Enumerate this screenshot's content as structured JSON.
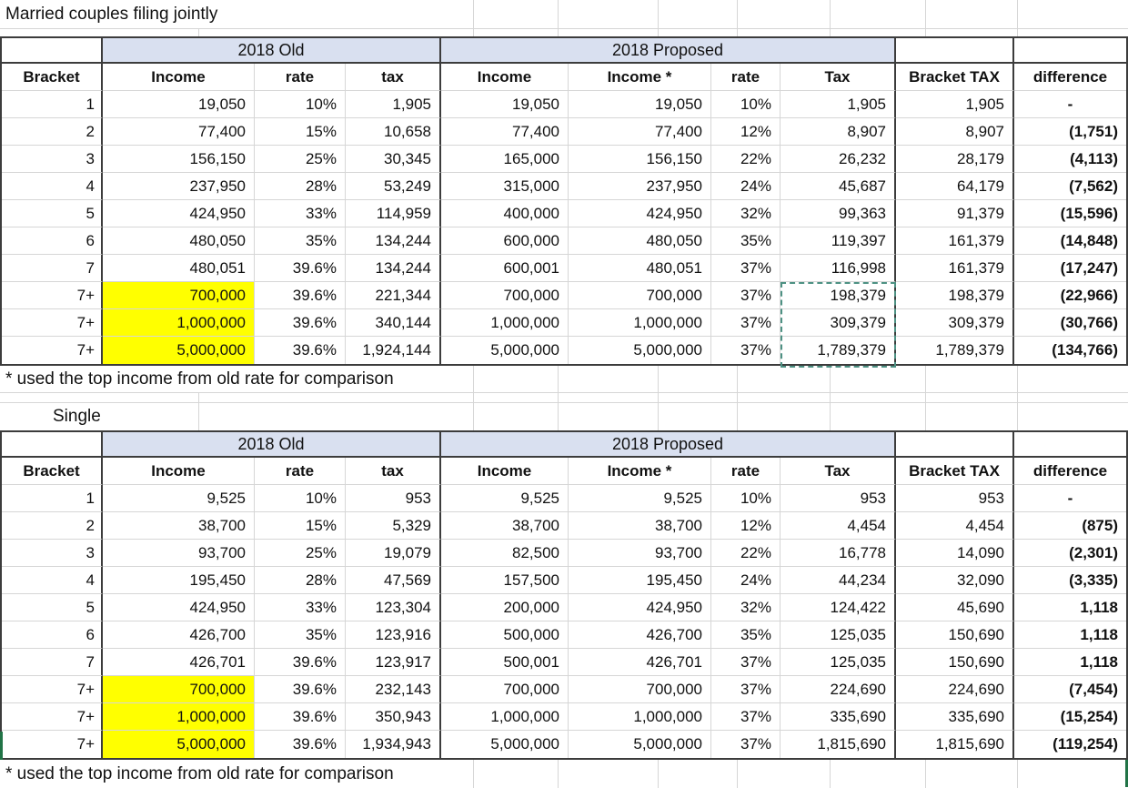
{
  "sheet": {
    "title_married": "Married couples filing jointly",
    "single_label": "Single",
    "footnote": "* used the top income from old rate for comparison"
  },
  "colors": {
    "band_fill": "#d9e0f0",
    "gridline": "#d6d6d6",
    "border_dark": "#3c3c3c",
    "highlight_yellow": "#ffff00",
    "marquee_teal": "#4d9183",
    "selection_green": "#217346",
    "text": "#111111"
  },
  "header": {
    "old": "2018 Old",
    "proposed": "2018 Proposed",
    "columns": [
      "Bracket",
      "Income",
      "rate",
      "tax",
      "Income",
      "Income *",
      "rate",
      "Tax",
      "Bracket TAX",
      "difference"
    ]
  },
  "married_table": {
    "rows": [
      {
        "cells": [
          "1",
          "19,050",
          "10%",
          "1,905",
          "19,050",
          "19,050",
          "10%",
          "1,905",
          "1,905",
          "-"
        ],
        "highlight": false
      },
      {
        "cells": [
          "2",
          "77,400",
          "15%",
          "10,658",
          "77,400",
          "77,400",
          "12%",
          "8,907",
          "8,907",
          "(1,751)"
        ],
        "highlight": false
      },
      {
        "cells": [
          "3",
          "156,150",
          "25%",
          "30,345",
          "165,000",
          "156,150",
          "22%",
          "26,232",
          "28,179",
          "(4,113)"
        ],
        "highlight": false
      },
      {
        "cells": [
          "4",
          "237,950",
          "28%",
          "53,249",
          "315,000",
          "237,950",
          "24%",
          "45,687",
          "64,179",
          "(7,562)"
        ],
        "highlight": false
      },
      {
        "cells": [
          "5",
          "424,950",
          "33%",
          "114,959",
          "400,000",
          "424,950",
          "32%",
          "99,363",
          "91,379",
          "(15,596)"
        ],
        "highlight": false
      },
      {
        "cells": [
          "6",
          "480,050",
          "35%",
          "134,244",
          "600,000",
          "480,050",
          "35%",
          "119,397",
          "161,379",
          "(14,848)"
        ],
        "highlight": false
      },
      {
        "cells": [
          "7",
          "480,051",
          "39.6%",
          "134,244",
          "600,001",
          "480,051",
          "37%",
          "116,998",
          "161,379",
          "(17,247)"
        ],
        "highlight": false
      },
      {
        "cells": [
          "7+",
          "700,000",
          "39.6%",
          "221,344",
          "700,000",
          "700,000",
          "37%",
          "198,379",
          "198,379",
          "(22,966)"
        ],
        "highlight": true
      },
      {
        "cells": [
          "7+",
          "1,000,000",
          "39.6%",
          "340,144",
          "1,000,000",
          "1,000,000",
          "37%",
          "309,379",
          "309,379",
          "(30,766)"
        ],
        "highlight": true
      },
      {
        "cells": [
          "7+",
          "5,000,000",
          "39.6%",
          "1,924,144",
          "5,000,000",
          "5,000,000",
          "37%",
          "1,789,379",
          "1,789,379",
          "(134,766)"
        ],
        "highlight": true
      }
    ],
    "copy_selection": {
      "column": "Tax",
      "row_indices": [
        7,
        8,
        9
      ]
    }
  },
  "single_table": {
    "rows": [
      {
        "cells": [
          "1",
          "9,525",
          "10%",
          "953",
          "9,525",
          "9,525",
          "10%",
          "953",
          "953",
          "-"
        ],
        "highlight": false
      },
      {
        "cells": [
          "2",
          "38,700",
          "15%",
          "5,329",
          "38,700",
          "38,700",
          "12%",
          "4,454",
          "4,454",
          "(875)"
        ],
        "highlight": false
      },
      {
        "cells": [
          "3",
          "93,700",
          "25%",
          "19,079",
          "82,500",
          "93,700",
          "22%",
          "16,778",
          "14,090",
          "(2,301)"
        ],
        "highlight": false
      },
      {
        "cells": [
          "4",
          "195,450",
          "28%",
          "47,569",
          "157,500",
          "195,450",
          "24%",
          "44,234",
          "32,090",
          "(3,335)"
        ],
        "highlight": false
      },
      {
        "cells": [
          "5",
          "424,950",
          "33%",
          "123,304",
          "200,000",
          "424,950",
          "32%",
          "124,422",
          "45,690",
          "1,118"
        ],
        "highlight": false
      },
      {
        "cells": [
          "6",
          "426,700",
          "35%",
          "123,916",
          "500,000",
          "426,700",
          "35%",
          "125,035",
          "150,690",
          "1,118"
        ],
        "highlight": false
      },
      {
        "cells": [
          "7",
          "426,701",
          "39.6%",
          "123,917",
          "500,001",
          "426,701",
          "37%",
          "125,035",
          "150,690",
          "1,118"
        ],
        "highlight": false
      },
      {
        "cells": [
          "7+",
          "700,000",
          "39.6%",
          "232,143",
          "700,000",
          "700,000",
          "37%",
          "224,690",
          "224,690",
          "(7,454)"
        ],
        "highlight": true
      },
      {
        "cells": [
          "7+",
          "1,000,000",
          "39.6%",
          "350,943",
          "1,000,000",
          "1,000,000",
          "37%",
          "335,690",
          "335,690",
          "(15,254)"
        ],
        "highlight": true
      },
      {
        "cells": [
          "7+",
          "5,000,000",
          "39.6%",
          "1,934,943",
          "5,000,000",
          "5,000,000",
          "37%",
          "1,815,690",
          "1,815,690",
          "(119,254)"
        ],
        "highlight": true
      }
    ]
  }
}
